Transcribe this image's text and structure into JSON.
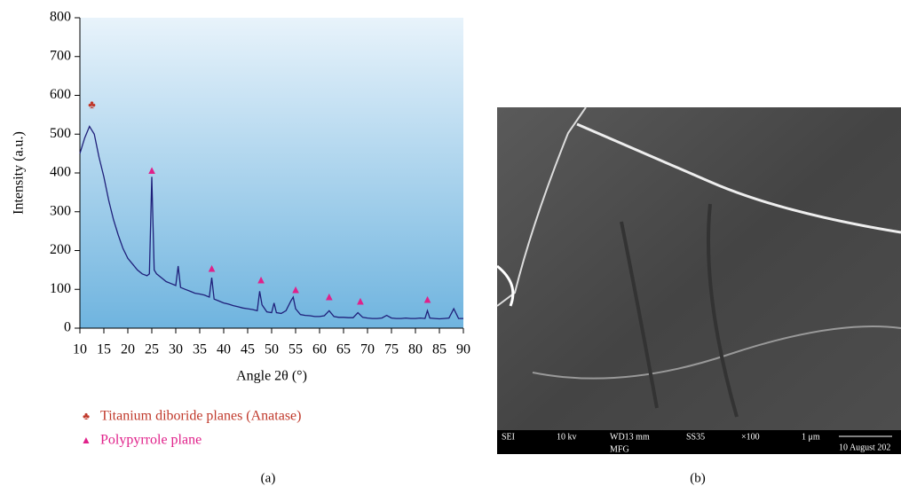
{
  "chart_data": {
    "type": "line",
    "ylabel": "Intensity (a.u.)",
    "xlabel": "Angle 2θ (°)",
    "xlim": [
      10,
      90
    ],
    "ylim": [
      0,
      800
    ],
    "xticks": [
      10,
      15,
      20,
      25,
      30,
      35,
      40,
      45,
      50,
      55,
      60,
      65,
      70,
      75,
      80,
      85,
      90
    ],
    "yticks": [
      0,
      100,
      200,
      300,
      400,
      500,
      600,
      700,
      800
    ],
    "series": [
      {
        "color": "#1f1f7a",
        "x": [
          10,
          11,
          12,
          13,
          14,
          15,
          16,
          17,
          18,
          19,
          20,
          21,
          22,
          23,
          24,
          24.5,
          25,
          25.5,
          26,
          27,
          28,
          29,
          30,
          30.5,
          31,
          32,
          33,
          34,
          35,
          36,
          37,
          37.5,
          38,
          39,
          40,
          41,
          42,
          43,
          44,
          45,
          46,
          47,
          47.5,
          48,
          49,
          50,
          50.5,
          51,
          52,
          53,
          54,
          54.5,
          55,
          56,
          57,
          58,
          59,
          60,
          61,
          62,
          63,
          64,
          65,
          66,
          67,
          68,
          69,
          70,
          71,
          72,
          73,
          74,
          75,
          76,
          77,
          78,
          79,
          80,
          81,
          82,
          82.5,
          83,
          84,
          85,
          86,
          87,
          88,
          89,
          90
        ],
        "values": [
          450,
          490,
          520,
          500,
          440,
          390,
          330,
          280,
          240,
          205,
          180,
          165,
          150,
          140,
          135,
          140,
          390,
          150,
          140,
          130,
          120,
          115,
          110,
          160,
          105,
          100,
          95,
          90,
          88,
          85,
          80,
          130,
          75,
          70,
          65,
          62,
          58,
          55,
          52,
          50,
          48,
          45,
          95,
          60,
          42,
          40,
          65,
          40,
          38,
          45,
          70,
          80,
          50,
          35,
          33,
          32,
          30,
          30,
          32,
          45,
          30,
          28,
          28,
          27,
          27,
          40,
          28,
          26,
          25,
          25,
          26,
          33,
          26,
          25,
          25,
          26,
          25,
          25,
          26,
          25,
          45,
          26,
          25,
          24,
          25,
          26,
          50,
          25,
          25
        ]
      },
      {
        "type": "marker",
        "name": "Titanium diboride planes (Anatase)",
        "symbol": "♣",
        "color": "#c0392b",
        "x": [
          12.5
        ],
        "values": [
          565
        ]
      },
      {
        "type": "marker",
        "name": "Polypyrrole plane",
        "symbol": "▲",
        "color": "#e0218a",
        "x": [
          25,
          37.5,
          47.8,
          55,
          62,
          68.5,
          82.5
        ],
        "values": [
          395,
          143,
          113,
          88,
          70,
          58,
          63
        ]
      }
    ]
  },
  "panels": [
    "(a)",
    "(b)"
  ],
  "sem_bar": [
    "SEI",
    "10 kv",
    "WD13 mm",
    "MFG",
    "SS35",
    "×100",
    "1 μm",
    "10 August 202"
  ]
}
